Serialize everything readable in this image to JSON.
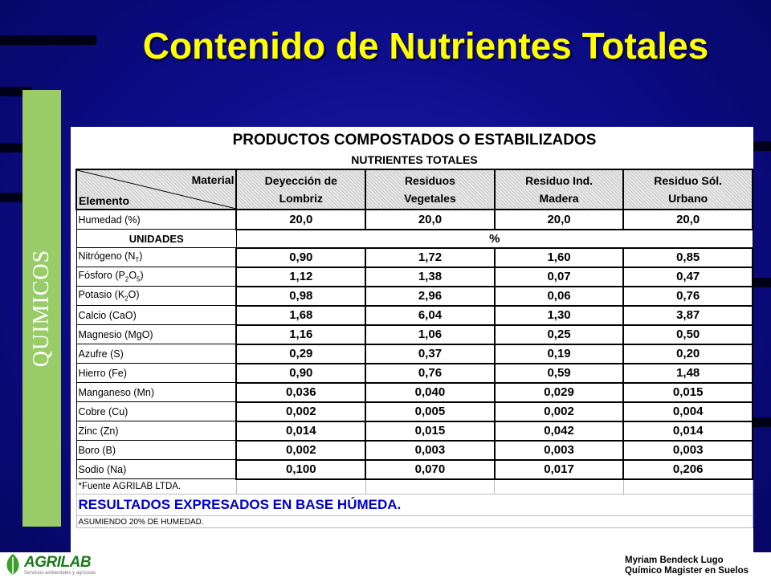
{
  "slide": {
    "title": "Contenido de Nutrientes Totales",
    "sidebar_label": "QUIMICOS",
    "author_line1": "Myriam Bendeck Lugo",
    "author_line2": "Químico Magister en Suelos",
    "logo_text": "AGRILAB",
    "logo_subtext": "Servicios ambientales y agrícolas"
  },
  "table": {
    "heading": "PRODUCTOS COMPOSTADOS O ESTABILIZADOS",
    "subheading": "NUTRIENTES TOTALES",
    "corner_top": "Material",
    "corner_bottom": "Elemento",
    "columns": [
      {
        "l1": "Deyección de",
        "l2": "Lombriz"
      },
      {
        "l1": "Residuos",
        "l2": "Vegetales"
      },
      {
        "l1": "Residuo Ind.",
        "l2": "Madera"
      },
      {
        "l1": "Residuo Sól.",
        "l2": "Urbano"
      }
    ],
    "humidity": {
      "label": "Humedad (%)",
      "values": [
        "20,0",
        "20,0",
        "20,0",
        "20,0"
      ]
    },
    "units": {
      "label": "UNIDADES",
      "value": "%"
    },
    "rows": [
      {
        "label": "Nitrógeno (N",
        "sub": "T",
        "tail": ")",
        "values": [
          "0,90",
          "1,72",
          "1,60",
          "0,85"
        ]
      },
      {
        "label": "Fósforo (P",
        "sub": "2",
        "mid": "O",
        "sub2": "5",
        "tail": ")",
        "values": [
          "1,12",
          "1,38",
          "0,07",
          "0,47"
        ]
      },
      {
        "label": "Potasio (K",
        "sub": "2",
        "tail": "O)",
        "values": [
          "0,98",
          "2,96",
          "0,06",
          "0,76"
        ]
      },
      {
        "label": "Calcio (CaO)",
        "values": [
          "1,68",
          "6,04",
          "1,30",
          "3,87"
        ]
      },
      {
        "label": "Magnesio (MgO)",
        "values": [
          "1,16",
          "1,06",
          "0,25",
          "0,50"
        ]
      },
      {
        "label": "Azufre (S)",
        "values": [
          "0,29",
          "0,37",
          "0,19",
          "0,20"
        ]
      },
      {
        "label": "Hierro (Fe)",
        "values": [
          "0,90",
          "0,76",
          "0,59",
          "1,48"
        ]
      },
      {
        "label": "Manganeso (Mn)",
        "values": [
          "0,036",
          "0,040",
          "0,029",
          "0,015"
        ]
      },
      {
        "label": "Cobre (Cu)",
        "values": [
          "0,002",
          "0,005",
          "0,002",
          "0,004"
        ]
      },
      {
        "label": "Zinc (Zn)",
        "values": [
          "0,014",
          "0,015",
          "0,042",
          "0,014"
        ]
      },
      {
        "label": "Boro (B)",
        "values": [
          "0,002",
          "0,003",
          "0,003",
          "0,003"
        ]
      },
      {
        "label": "Sodio (Na)",
        "values": [
          "0,100",
          "0,070",
          "0,017",
          "0,206"
        ]
      }
    ],
    "source": "*Fuente AGRILAB LTDA.",
    "results_note": "RESULTADOS EXPRESADOS EN BASE HÚMEDA.",
    "assumption": "ASUMIENDO 20% DE HUMEDAD."
  },
  "colors": {
    "title": "#ffff00",
    "sidebar": "#99cc66",
    "background": "#0c0c86",
    "note": "#0000cc"
  }
}
